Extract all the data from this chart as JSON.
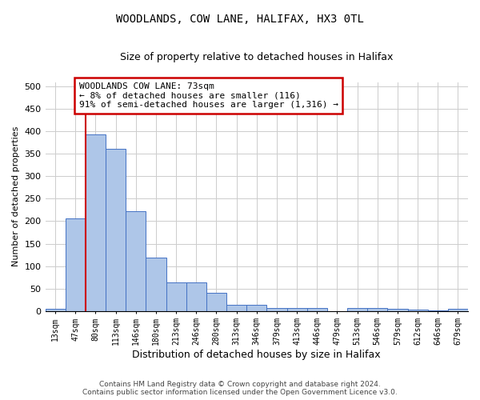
{
  "title": "WOODLANDS, COW LANE, HALIFAX, HX3 0TL",
  "subtitle": "Size of property relative to detached houses in Halifax",
  "xlabel": "Distribution of detached houses by size in Halifax",
  "ylabel": "Number of detached properties",
  "categories": [
    "13sqm",
    "47sqm",
    "80sqm",
    "113sqm",
    "146sqm",
    "180sqm",
    "213sqm",
    "246sqm",
    "280sqm",
    "313sqm",
    "346sqm",
    "379sqm",
    "413sqm",
    "446sqm",
    "479sqm",
    "513sqm",
    "546sqm",
    "579sqm",
    "612sqm",
    "646sqm",
    "679sqm"
  ],
  "values": [
    4,
    207,
    394,
    362,
    222,
    119,
    64,
    64,
    40,
    14,
    14,
    7,
    7,
    7,
    0,
    7,
    7,
    4,
    2,
    1,
    4
  ],
  "bar_color": "#aec6e8",
  "bar_edge_color": "#4472c4",
  "background_color": "#ffffff",
  "grid_color": "#cccccc",
  "vline_x": 1.5,
  "vline_color": "#cc0000",
  "annotation_text": "WOODLANDS COW LANE: 73sqm\n← 8% of detached houses are smaller (116)\n91% of semi-detached houses are larger (1,316) →",
  "annotation_box_color": "#ffffff",
  "annotation_box_edge": "#cc0000",
  "ylim": [
    0,
    510
  ],
  "yticks": [
    0,
    50,
    100,
    150,
    200,
    250,
    300,
    350,
    400,
    450,
    500
  ],
  "footer1": "Contains HM Land Registry data © Crown copyright and database right 2024.",
  "footer2": "Contains public sector information licensed under the Open Government Licence v3.0."
}
